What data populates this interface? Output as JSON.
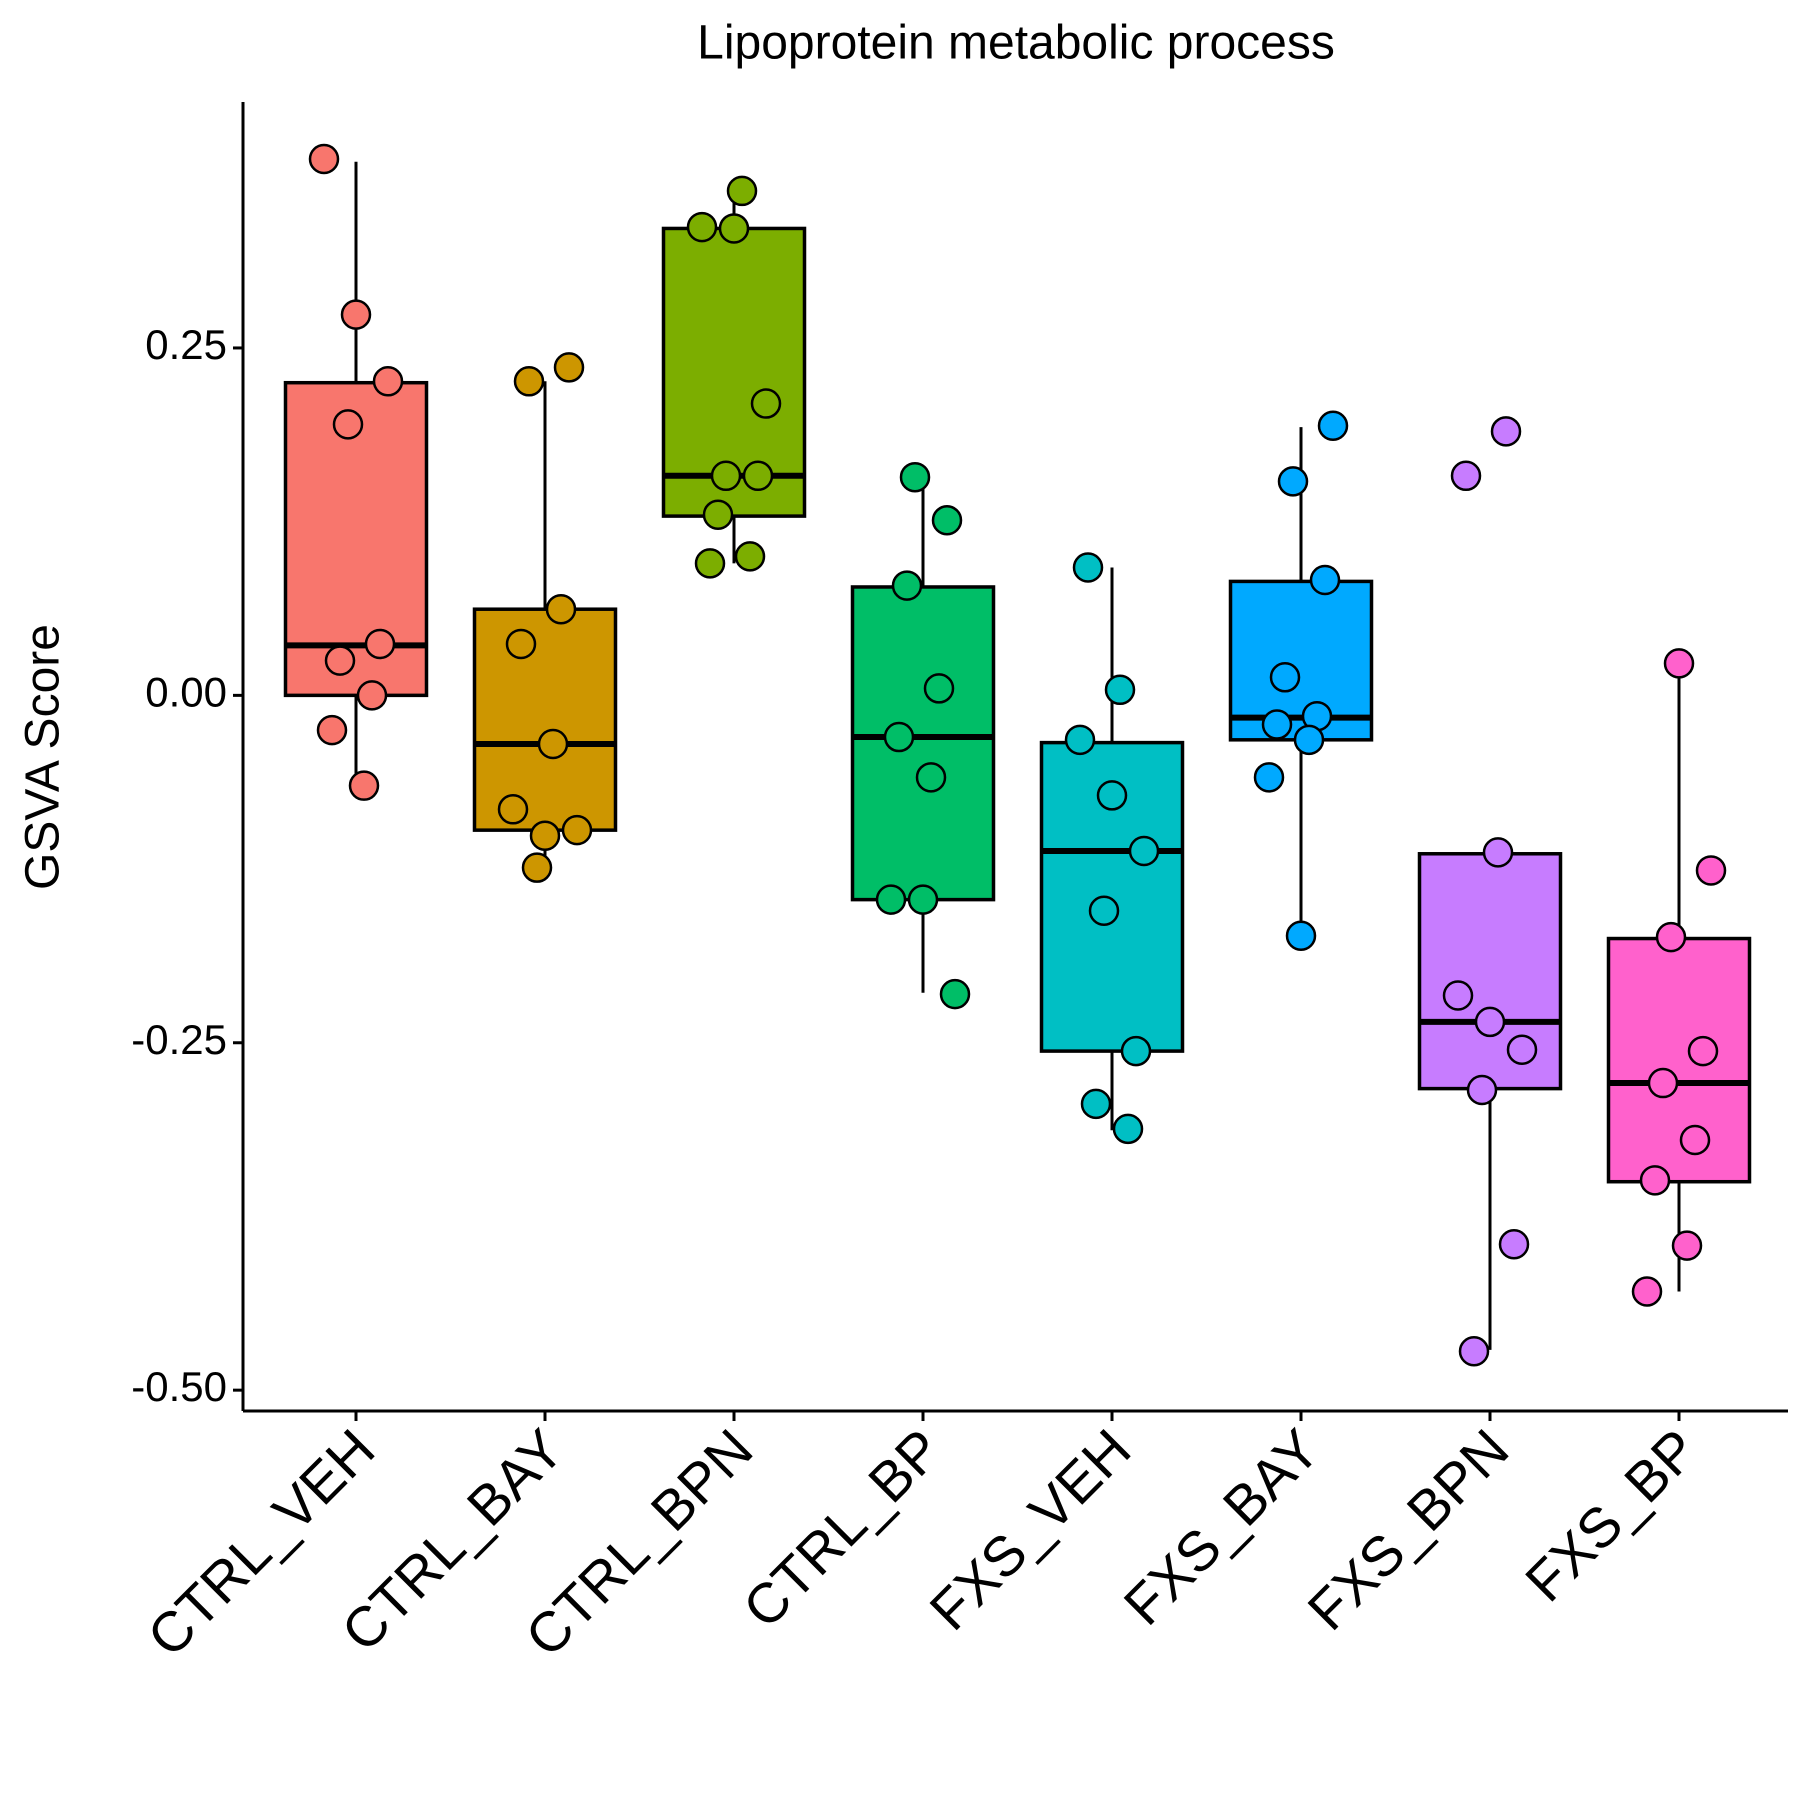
{
  "chart_data": {
    "type": "box",
    "title": "Lipoprotein metabolic process",
    "ylabel": "GSVA Score",
    "categories": [
      "CTRL_VEH",
      "CTRL_BAY",
      "CTRL_BPN",
      "CTRL_BP",
      "FXS_VEH",
      "FXS_BAY",
      "FXS_BPN",
      "FXS_BP"
    ],
    "colors": [
      "#F8766D",
      "#CD9600",
      "#7CAE00",
      "#00BE67",
      "#00BFC4",
      "#00A9FF",
      "#C77CFF",
      "#FF61CC"
    ],
    "boxes": [
      {
        "whisker_low": -0.065,
        "q1": 0.0,
        "median": 0.036,
        "q3": 0.225,
        "whisker_high": 0.384
      },
      {
        "whisker_low": -0.124,
        "q1": -0.097,
        "median": -0.035,
        "q3": 0.062,
        "whisker_high": 0.226
      },
      {
        "whisker_low": 0.095,
        "q1": 0.129,
        "median": 0.158,
        "q3": 0.336,
        "whisker_high": 0.363
      },
      {
        "whisker_low": -0.214,
        "q1": -0.147,
        "median": -0.03,
        "q3": 0.078,
        "whisker_high": 0.157
      },
      {
        "whisker_low": -0.313,
        "q1": -0.256,
        "median": -0.112,
        "q3": -0.034,
        "whisker_high": 0.092
      },
      {
        "whisker_low": -0.172,
        "q1": -0.032,
        "median": -0.016,
        "q3": 0.082,
        "whisker_high": 0.193
      },
      {
        "whisker_low": -0.471,
        "q1": -0.283,
        "median": -0.235,
        "q3": -0.114,
        "whisker_high": -0.114
      },
      {
        "whisker_low": -0.429,
        "q1": -0.35,
        "median": -0.279,
        "q3": -0.175,
        "whisker_high": 0.023
      }
    ],
    "points": [
      [
        0.386,
        0.274,
        0.226,
        0.195,
        0.037,
        0.025,
        0.0,
        -0.025,
        -0.065
      ],
      [
        0.236,
        0.226,
        0.062,
        0.037,
        -0.035,
        -0.082,
        -0.101,
        -0.097,
        -0.124
      ],
      [
        0.363,
        0.337,
        0.336,
        0.21,
        0.158,
        0.158,
        0.13,
        0.1,
        0.095
      ],
      [
        0.157,
        0.126,
        0.079,
        0.005,
        -0.03,
        -0.059,
        -0.147,
        -0.147,
        -0.215
      ],
      [
        0.092,
        0.004,
        -0.032,
        -0.072,
        -0.112,
        -0.155,
        -0.256,
        -0.294,
        -0.312
      ],
      [
        0.194,
        0.154,
        0.083,
        0.013,
        -0.015,
        -0.021,
        -0.032,
        -0.059,
        -0.173
      ],
      [
        0.19,
        0.158,
        -0.113,
        -0.216,
        -0.235,
        -0.255,
        -0.284,
        -0.395,
        -0.472
      ],
      [
        0.023,
        -0.126,
        -0.174,
        -0.256,
        -0.279,
        -0.32,
        -0.349,
        -0.396,
        -0.429
      ]
    ],
    "ylim": [
      -0.515,
      0.427
    ],
    "yticks": [
      0.25,
      {
        "value": 0,
        "label": "0.00"
      },
      -0.25,
      {
        "value": -0.5,
        "label": "-0.50"
      }
    ]
  }
}
